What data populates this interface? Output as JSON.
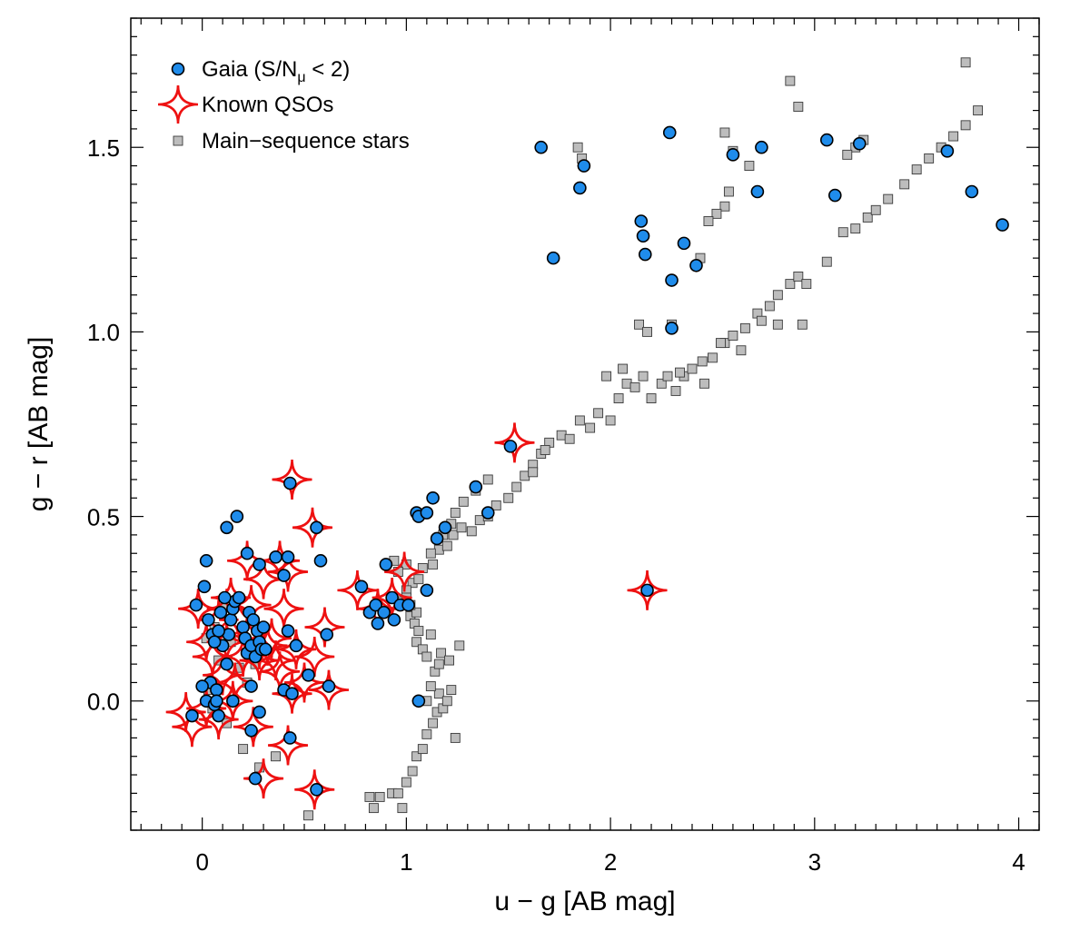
{
  "chart_data": {
    "type": "scatter",
    "title": "",
    "xlabel": "u − g  [AB mag]",
    "ylabel": "g − r  [AB mag]",
    "xlim": [
      -0.35,
      4.1
    ],
    "ylim": [
      -0.35,
      1.85
    ],
    "xticks": [
      0,
      1,
      2,
      3,
      4
    ],
    "xtick_labels": [
      "0",
      "1",
      "2",
      "3",
      "4"
    ],
    "yticks": [
      0.0,
      0.5,
      1.0,
      1.5
    ],
    "ytick_labels": [
      "0.0",
      "0.5",
      "1.0",
      "1.5"
    ],
    "legend_position": "top-left",
    "colors": {
      "gaia": "#1f8ceb",
      "qso": "#ee1111",
      "stars": "#bdbdbd",
      "edge": "#000000"
    },
    "series": [
      {
        "name": "Main−sequence stars",
        "marker": "square",
        "points": [
          [
            0.52,
            -0.31
          ],
          [
            0.82,
            -0.26
          ],
          [
            0.84,
            -0.29
          ],
          [
            0.87,
            -0.26
          ],
          [
            0.93,
            -0.25
          ],
          [
            0.96,
            -0.25
          ],
          [
            0.98,
            -0.29
          ],
          [
            1.0,
            -0.22
          ],
          [
            1.03,
            -0.19
          ],
          [
            1.05,
            -0.15
          ],
          [
            1.08,
            -0.13
          ],
          [
            1.1,
            -0.09
          ],
          [
            1.13,
            -0.06
          ],
          [
            1.15,
            -0.03
          ],
          [
            1.1,
            0.0
          ],
          [
            1.16,
            0.02
          ],
          [
            1.18,
            -0.02
          ],
          [
            1.12,
            0.04
          ],
          [
            1.14,
            0.08
          ],
          [
            1.16,
            0.1
          ],
          [
            1.2,
            0.0
          ],
          [
            1.22,
            0.03
          ],
          [
            1.24,
            -0.1
          ],
          [
            1.12,
            0.18
          ],
          [
            1.17,
            0.13
          ],
          [
            1.21,
            0.11
          ],
          [
            1.26,
            0.15
          ],
          [
            1.05,
            0.16
          ],
          [
            1.08,
            0.14
          ],
          [
            1.1,
            0.12
          ],
          [
            1.02,
            0.23
          ],
          [
            1.05,
            0.24
          ],
          [
            1.03,
            0.32
          ],
          [
            1.06,
            0.33
          ],
          [
            1.08,
            0.36
          ],
          [
            1.13,
            0.37
          ],
          [
            1.16,
            0.41
          ],
          [
            1.2,
            0.42
          ],
          [
            1.23,
            0.45
          ],
          [
            1.27,
            0.47
          ],
          [
            1.32,
            0.46
          ],
          [
            1.36,
            0.49
          ],
          [
            1.4,
            0.5
          ],
          [
            1.44,
            0.53
          ],
          [
            1.5,
            0.55
          ],
          [
            1.54,
            0.58
          ],
          [
            1.58,
            0.61
          ],
          [
            1.62,
            0.64
          ],
          [
            1.66,
            0.67
          ],
          [
            1.7,
            0.7
          ],
          [
            1.76,
            0.72
          ],
          [
            1.8,
            0.71
          ],
          [
            1.85,
            0.76
          ],
          [
            1.9,
            0.74
          ],
          [
            1.94,
            0.78
          ],
          [
            2.0,
            0.76
          ],
          [
            2.04,
            0.82
          ],
          [
            2.08,
            0.86
          ],
          [
            2.12,
            0.85
          ],
          [
            2.16,
            0.88
          ],
          [
            2.2,
            0.82
          ],
          [
            2.25,
            0.86
          ],
          [
            2.28,
            0.88
          ],
          [
            2.32,
            0.84
          ],
          [
            2.36,
            0.88
          ],
          [
            2.4,
            0.9
          ],
          [
            2.45,
            0.92
          ],
          [
            2.5,
            0.93
          ],
          [
            2.56,
            0.97
          ],
          [
            2.6,
            0.99
          ],
          [
            2.66,
            1.01
          ],
          [
            2.72,
            1.05
          ],
          [
            2.78,
            1.07
          ],
          [
            2.82,
            1.1
          ],
          [
            2.88,
            1.13
          ],
          [
            2.92,
            1.15
          ],
          [
            2.96,
            1.13
          ],
          [
            3.06,
            1.19
          ],
          [
            3.14,
            1.27
          ],
          [
            3.2,
            1.28
          ],
          [
            3.26,
            1.31
          ],
          [
            3.3,
            1.33
          ],
          [
            3.36,
            1.36
          ],
          [
            3.44,
            1.4
          ],
          [
            3.5,
            1.44
          ],
          [
            3.56,
            1.47
          ],
          [
            3.62,
            1.5
          ],
          [
            3.68,
            1.53
          ],
          [
            3.74,
            1.56
          ],
          [
            3.8,
            1.6
          ],
          [
            2.88,
            1.68
          ],
          [
            2.92,
            1.61
          ],
          [
            3.74,
            1.73
          ],
          [
            3.2,
            1.5
          ],
          [
            3.16,
            1.48
          ],
          [
            3.24,
            1.52
          ],
          [
            2.56,
            1.54
          ],
          [
            2.6,
            1.49
          ],
          [
            2.68,
            1.45
          ],
          [
            2.58,
            1.38
          ],
          [
            2.56,
            1.34
          ],
          [
            2.52,
            1.32
          ],
          [
            2.44,
            1.2
          ],
          [
            2.48,
            1.3
          ],
          [
            1.84,
            1.5
          ],
          [
            1.86,
            1.47
          ],
          [
            2.14,
            1.02
          ],
          [
            2.3,
            1.02
          ],
          [
            2.74,
            1.03
          ],
          [
            2.82,
            1.02
          ],
          [
            2.94,
            1.02
          ],
          [
            2.18,
            1.0
          ],
          [
            2.54,
            0.97
          ],
          [
            2.64,
            0.95
          ],
          [
            2.34,
            0.89
          ],
          [
            2.46,
            0.86
          ],
          [
            1.98,
            0.88
          ],
          [
            2.06,
            0.9
          ],
          [
            1.68,
            0.68
          ],
          [
            1.62,
            0.62
          ],
          [
            1.4,
            0.6
          ],
          [
            1.34,
            0.57
          ],
          [
            1.28,
            0.54
          ],
          [
            1.24,
            0.51
          ],
          [
            1.22,
            0.48
          ],
          [
            1.18,
            0.45
          ],
          [
            1.12,
            0.4
          ],
          [
            1.0,
            0.37
          ],
          [
            0.94,
            0.38
          ],
          [
            0.96,
            0.35
          ],
          [
            1.0,
            0.3
          ],
          [
            0.98,
            0.27
          ],
          [
            1.02,
            0.26
          ],
          [
            0.06,
            0.2
          ],
          [
            0.1,
            0.26
          ],
          [
            0.14,
            0.16
          ],
          [
            0.18,
            0.09
          ],
          [
            0.22,
            0.05
          ],
          [
            0.26,
            0.1
          ],
          [
            0.03,
            0.03
          ],
          [
            0.05,
            -0.02
          ],
          [
            0.12,
            -0.06
          ],
          [
            0.2,
            -0.13
          ],
          [
            0.28,
            -0.18
          ],
          [
            0.36,
            -0.15
          ],
          [
            0.02,
            0.17
          ],
          [
            0.08,
            0.11
          ],
          [
            1.0,
            0.28
          ],
          [
            1.04,
            0.21
          ],
          [
            1.06,
            0.19
          ]
        ]
      },
      {
        "name": "Known QSOs",
        "marker": "star4",
        "points": [
          [
            -0.05,
            -0.07
          ],
          [
            -0.08,
            -0.03
          ],
          [
            0.02,
            -0.02
          ],
          [
            0.08,
            -0.05
          ],
          [
            0.15,
            0.0
          ],
          [
            0.25,
            -0.07
          ],
          [
            0.3,
            -0.21
          ],
          [
            0.42,
            -0.12
          ],
          [
            0.55,
            -0.24
          ],
          [
            0.62,
            0.03
          ],
          [
            0.5,
            0.05
          ],
          [
            0.44,
            0.02
          ],
          [
            0.38,
            0.08
          ],
          [
            0.46,
            0.14
          ],
          [
            0.55,
            0.12
          ],
          [
            0.6,
            0.2
          ],
          [
            0.54,
            0.47
          ],
          [
            0.44,
            0.6
          ],
          [
            0.38,
            0.38
          ],
          [
            0.3,
            0.33
          ],
          [
            0.22,
            0.38
          ],
          [
            0.14,
            0.28
          ],
          [
            0.08,
            0.22
          ],
          [
            -0.02,
            0.25
          ],
          [
            0.05,
            0.12
          ],
          [
            0.12,
            0.16
          ],
          [
            0.2,
            0.12
          ],
          [
            0.28,
            0.14
          ],
          [
            0.34,
            0.17
          ],
          [
            0.42,
            0.35
          ],
          [
            0.18,
            0.22
          ],
          [
            0.24,
            0.26
          ],
          [
            0.1,
            0.07
          ],
          [
            0.16,
            0.05
          ],
          [
            0.22,
            0.18
          ],
          [
            0.28,
            0.11
          ],
          [
            0.36,
            0.11
          ],
          [
            0.02,
            0.16
          ],
          [
            0.76,
            0.3
          ],
          [
            0.86,
            0.25
          ],
          [
            0.93,
            0.28
          ],
          [
            0.99,
            0.35
          ],
          [
            1.53,
            0.7
          ],
          [
            2.18,
            0.3
          ],
          [
            0.32,
            0.15
          ],
          [
            0.12,
            0.25
          ],
          [
            0.4,
            0.25
          ]
        ]
      },
      {
        "name": "Gaia (S/N",
        "marker": "circle",
        "points": [
          [
            -0.05,
            -0.04
          ],
          [
            0.02,
            0.0
          ],
          [
            0.04,
            0.05
          ],
          [
            0.06,
            -0.01
          ],
          [
            0.07,
            0.03
          ],
          [
            0.08,
            -0.04
          ],
          [
            0.1,
            0.15
          ],
          [
            0.12,
            0.1
          ],
          [
            0.13,
            0.18
          ],
          [
            0.14,
            0.22
          ],
          [
            0.15,
            0.25
          ],
          [
            0.16,
            0.27
          ],
          [
            0.18,
            0.28
          ],
          [
            0.2,
            0.2
          ],
          [
            0.21,
            0.17
          ],
          [
            0.22,
            0.13
          ],
          [
            0.23,
            0.24
          ],
          [
            0.24,
            0.15
          ],
          [
            0.25,
            0.22
          ],
          [
            0.26,
            0.12
          ],
          [
            0.27,
            0.19
          ],
          [
            0.28,
            0.16
          ],
          [
            0.29,
            0.14
          ],
          [
            0.3,
            0.2
          ],
          [
            0.31,
            0.14
          ],
          [
            0.03,
            0.22
          ],
          [
            0.05,
            0.18
          ],
          [
            0.08,
            0.19
          ],
          [
            0.09,
            0.24
          ],
          [
            0.11,
            0.28
          ],
          [
            0.01,
            0.31
          ],
          [
            0.02,
            0.38
          ],
          [
            0.12,
            0.47
          ],
          [
            0.17,
            0.5
          ],
          [
            0.22,
            0.4
          ],
          [
            0.28,
            0.37
          ],
          [
            0.36,
            0.39
          ],
          [
            0.4,
            0.34
          ],
          [
            0.42,
            0.39
          ],
          [
            0.43,
            0.59
          ],
          [
            0.56,
            0.47
          ],
          [
            0.58,
            0.38
          ],
          [
            0.61,
            0.18
          ],
          [
            0.62,
            0.04
          ],
          [
            0.52,
            0.07
          ],
          [
            0.46,
            0.15
          ],
          [
            0.42,
            0.19
          ],
          [
            0.4,
            0.03
          ],
          [
            0.44,
            0.02
          ],
          [
            0.43,
            -0.1
          ],
          [
            0.56,
            -0.24
          ],
          [
            0.26,
            -0.21
          ],
          [
            0.24,
            -0.08
          ],
          [
            0.28,
            -0.03
          ],
          [
            0.24,
            0.04
          ],
          [
            -0.03,
            0.26
          ],
          [
            0.0,
            0.04
          ],
          [
            0.07,
            0.0
          ],
          [
            0.15,
            0.0
          ],
          [
            0.06,
            0.16
          ],
          [
            0.78,
            0.31
          ],
          [
            0.82,
            0.24
          ],
          [
            0.85,
            0.26
          ],
          [
            0.86,
            0.21
          ],
          [
            0.89,
            0.24
          ],
          [
            0.9,
            0.37
          ],
          [
            0.93,
            0.28
          ],
          [
            0.94,
            0.22
          ],
          [
            0.97,
            0.26
          ],
          [
            1.01,
            0.26
          ],
          [
            1.05,
            0.51
          ],
          [
            1.06,
            0.5
          ],
          [
            1.1,
            0.51
          ],
          [
            1.13,
            0.55
          ],
          [
            1.15,
            0.44
          ],
          [
            1.19,
            0.47
          ],
          [
            1.1,
            0.3
          ],
          [
            1.06,
            0.0
          ],
          [
            1.34,
            0.58
          ],
          [
            1.4,
            0.51
          ],
          [
            1.51,
            0.69
          ],
          [
            2.18,
            0.3
          ],
          [
            1.66,
            1.5
          ],
          [
            1.72,
            1.2
          ],
          [
            1.85,
            1.39
          ],
          [
            1.87,
            1.45
          ],
          [
            2.15,
            1.3
          ],
          [
            2.16,
            1.26
          ],
          [
            2.17,
            1.21
          ],
          [
            2.29,
            1.54
          ],
          [
            2.3,
            1.14
          ],
          [
            2.36,
            1.24
          ],
          [
            2.42,
            1.18
          ],
          [
            2.3,
            1.01
          ],
          [
            2.6,
            1.48
          ],
          [
            2.72,
            1.38
          ],
          [
            2.74,
            1.5
          ],
          [
            3.06,
            1.52
          ],
          [
            3.1,
            1.37
          ],
          [
            3.22,
            1.51
          ],
          [
            3.65,
            1.49
          ],
          [
            3.77,
            1.38
          ],
          [
            3.92,
            1.29
          ]
        ]
      }
    ]
  },
  "legend": {
    "gaia_label": "Gaia (S/N",
    "gaia_sub": "μ",
    "gaia_tail": " < 2)",
    "qso_label": "Known QSOs",
    "stars_label": "Main−sequence stars"
  }
}
